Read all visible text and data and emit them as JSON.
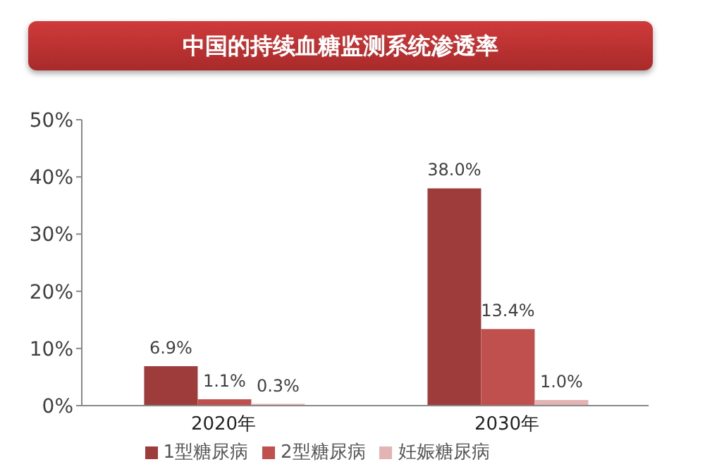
{
  "chart_data": {
    "type": "bar",
    "title": "中国的持续血糖监测系统渗透率",
    "categories": [
      "2020年",
      "2030年"
    ],
    "series": [
      {
        "name": "1型糖尿病",
        "color": "#9e3b3b",
        "values": [
          6.9,
          38.0
        ],
        "value_labels": [
          "6.9%",
          "38.0%"
        ]
      },
      {
        "name": "2型糖尿病",
        "color": "#c0504d",
        "values": [
          1.1,
          13.4
        ],
        "value_labels": [
          "1.1%",
          "13.4%"
        ]
      },
      {
        "name": "妊娠糖尿病",
        "color": "#e4b4b4",
        "values": [
          0.3,
          1.0
        ],
        "value_labels": [
          "0.3%",
          "1.0%"
        ]
      }
    ],
    "ylim": [
      0,
      50
    ],
    "yticks": [
      {
        "value": 0,
        "label": "0%"
      },
      {
        "value": 10,
        "label": "10%"
      },
      {
        "value": 20,
        "label": "20%"
      },
      {
        "value": 30,
        "label": "30%"
      },
      {
        "value": 40,
        "label": "40%"
      },
      {
        "value": 50,
        "label": "50%"
      }
    ],
    "grid": false,
    "legend": "bottom"
  }
}
